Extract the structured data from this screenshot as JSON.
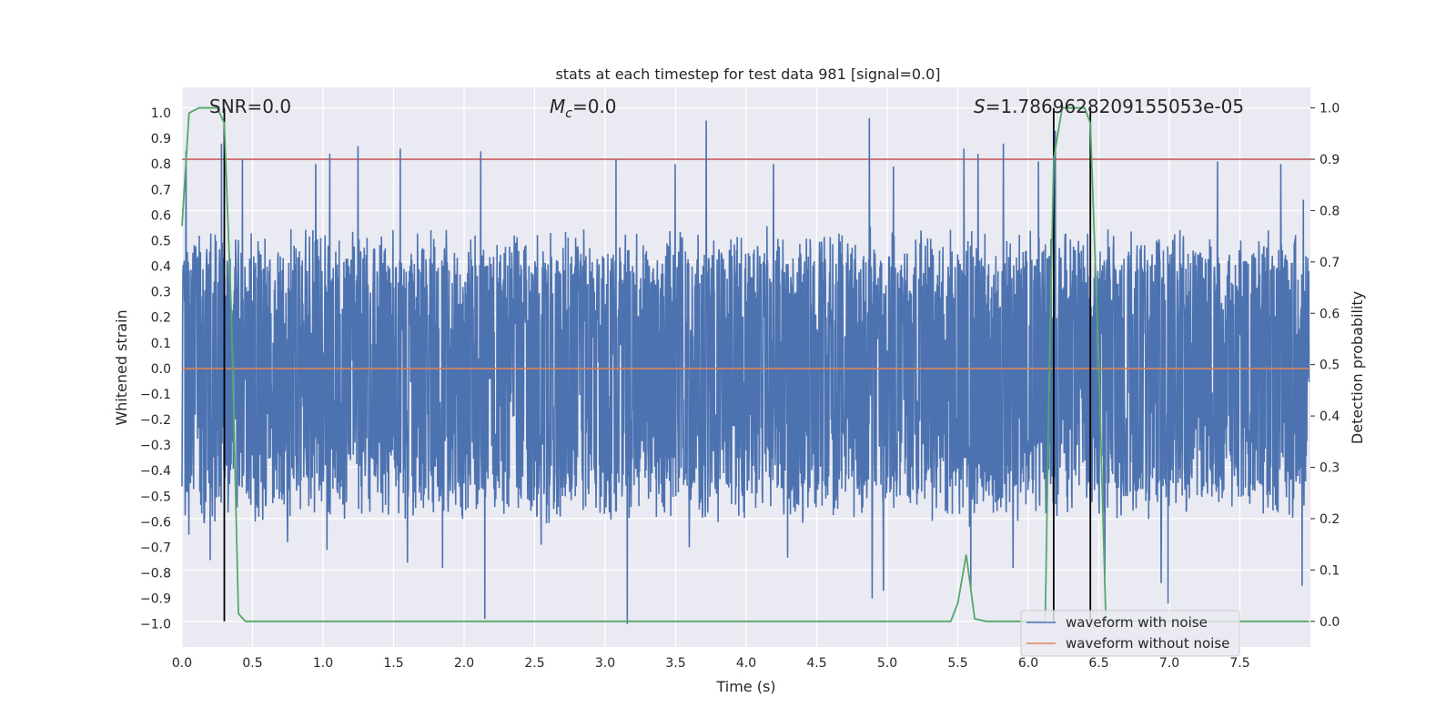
{
  "chart_data": {
    "type": "line",
    "title": "stats at each timestep for test data 981 [signal=0.0]",
    "xlabel": "Time (s)",
    "ylabel": "Whitened strain",
    "y2label": "Detection probability",
    "xlim": [
      0.0,
      8.0
    ],
    "ylim": [
      -1.09,
      1.1
    ],
    "y2lim": [
      -0.05,
      1.04
    ],
    "x_ticks": [
      0.0,
      0.5,
      1.0,
      1.5,
      2.0,
      2.5,
      3.0,
      3.5,
      4.0,
      4.5,
      5.0,
      5.5,
      6.0,
      6.5,
      7.0,
      7.5
    ],
    "x_tick_labels": [
      "0.0",
      "0.5",
      "1.0",
      "1.5",
      "2.0",
      "2.5",
      "3.0",
      "3.5",
      "4.0",
      "4.5",
      "5.0",
      "5.5",
      "6.0",
      "6.5",
      "7.0",
      "7.5"
    ],
    "y_ticks": [
      1.0,
      0.9,
      0.8,
      0.7,
      0.6,
      0.5,
      0.4,
      0.3,
      0.2,
      0.1,
      0.0,
      -0.1,
      -0.2,
      -0.3,
      -0.4,
      -0.5,
      -0.6,
      -0.7,
      -0.8,
      -0.9,
      -1.0
    ],
    "y_tick_labels": [
      "1.0",
      "0.9",
      "0.8",
      "0.7",
      "0.6",
      "0.5",
      "0.4",
      "0.3",
      "0.2",
      "0.1",
      "0.0",
      "−0.1",
      "−0.2",
      "−0.3",
      "−0.4",
      "−0.5",
      "−0.6",
      "−0.7",
      "−0.8",
      "−0.9",
      "−1.0"
    ],
    "y2_ticks": [
      1.0,
      0.9,
      0.8,
      0.7,
      0.6,
      0.5,
      0.4,
      0.3,
      0.2,
      0.1,
      0.0
    ],
    "y2_tick_labels": [
      "1.0",
      "0.9",
      "0.8",
      "0.7",
      "0.6",
      "0.5",
      "0.4",
      "0.3",
      "0.2",
      "0.1",
      "0.0"
    ],
    "annotations": {
      "snr": "SNR=0.0",
      "mc_symbol": "M",
      "mc_sub": "c",
      "mc_value": "=0.0",
      "s_symbol": "S",
      "s_value": "=1.7869628209155053e-05"
    },
    "legend": [
      {
        "label": "waveform with noise",
        "color": "#4c72b0"
      },
      {
        "label": "waveform without noise",
        "color": "#dd8452"
      }
    ],
    "threshold_prob": 0.9,
    "vertical_markers": [
      0.3,
      6.18,
      6.44
    ],
    "colors": {
      "noise": "#4c72b0",
      "clean": "#dd8452",
      "prob": "#55a868",
      "threshold": "#c44e52",
      "marker": "#000000",
      "background": "#eaeaf2",
      "grid": "#ffffff"
    },
    "series": [
      {
        "name": "Detection probability",
        "axis": "right",
        "x": [
          0.0,
          0.05,
          0.12,
          0.2,
          0.25,
          0.3,
          0.35,
          0.4,
          0.45,
          1.0,
          2.0,
          3.0,
          4.0,
          5.0,
          5.45,
          5.5,
          5.56,
          5.62,
          5.7,
          6.0,
          6.12,
          6.15,
          6.18,
          6.24,
          6.31,
          6.4,
          6.44,
          6.5,
          6.55,
          7.0,
          7.99
        ],
        "y": [
          0.77,
          0.99,
          1.0,
          1.0,
          1.0,
          0.97,
          0.6,
          0.015,
          0.0,
          0.0,
          0.0,
          0.0,
          0.0,
          0.0,
          0.0,
          0.035,
          0.13,
          0.005,
          0.0,
          0.0,
          0.0,
          0.5,
          0.9,
          1.0,
          1.0,
          1.0,
          0.97,
          0.5,
          0.0,
          0.0,
          0.0
        ]
      },
      {
        "name": "waveform with noise",
        "axis": "left",
        "envelope": {
          "typical_max": 0.45,
          "typical_min": -0.5
        },
        "peaks_upper": [
          [
            0.03,
            0.85
          ],
          [
            0.28,
            0.88
          ],
          [
            0.43,
            0.82
          ],
          [
            0.95,
            0.8
          ],
          [
            1.05,
            0.84
          ],
          [
            1.25,
            0.87
          ],
          [
            1.55,
            0.86
          ],
          [
            2.12,
            0.85
          ],
          [
            3.08,
            0.82
          ],
          [
            3.5,
            0.8
          ],
          [
            3.6,
            0.83
          ],
          [
            3.72,
            0.97
          ],
          [
            4.2,
            0.8
          ],
          [
            4.88,
            0.98
          ],
          [
            5.05,
            0.79
          ],
          [
            5.55,
            0.86
          ],
          [
            5.65,
            0.84
          ],
          [
            5.83,
            0.88
          ],
          [
            6.08,
            0.81
          ],
          [
            6.2,
            0.93
          ],
          [
            6.55,
            0.82
          ],
          [
            7.35,
            0.81
          ],
          [
            7.8,
            0.8
          ],
          [
            7.96,
            0.66
          ]
        ],
        "peaks_lower": [
          [
            0.05,
            -0.65
          ],
          [
            0.2,
            -0.75
          ],
          [
            0.75,
            -0.68
          ],
          [
            1.03,
            -0.71
          ],
          [
            1.6,
            -0.76
          ],
          [
            1.85,
            -0.78
          ],
          [
            2.15,
            -0.98
          ],
          [
            2.55,
            -0.69
          ],
          [
            3.16,
            -1.0
          ],
          [
            3.6,
            -0.7
          ],
          [
            4.3,
            -0.74
          ],
          [
            4.9,
            -0.9
          ],
          [
            4.98,
            -0.87
          ],
          [
            5.6,
            -0.87
          ],
          [
            5.9,
            -0.78
          ],
          [
            6.55,
            -0.81
          ],
          [
            6.95,
            -0.84
          ],
          [
            7.0,
            -0.92
          ],
          [
            7.95,
            -0.85
          ]
        ]
      },
      {
        "name": "waveform without noise",
        "axis": "left",
        "x": [
          0.0,
          7.99
        ],
        "y": [
          0.0,
          0.0
        ]
      }
    ]
  }
}
